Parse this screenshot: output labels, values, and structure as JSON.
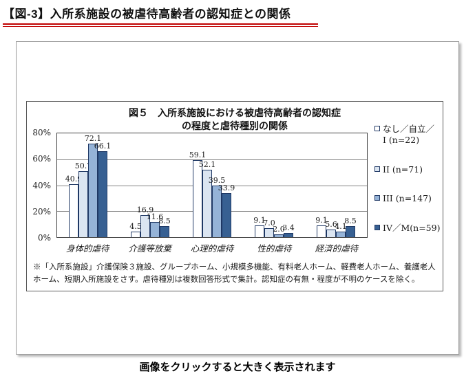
{
  "page": {
    "heading": "【図-3】入所系施設の被虐待高齢者の認知症との関係",
    "accent_underline_color": "#C00000",
    "caption": "画像をクリックすると大きく表示されます"
  },
  "chart_data": {
    "type": "bar",
    "title_line1": "図５　入所系施設における被虐待高齢者の認知症",
    "title_line2": "の程度と虐待種別の関係",
    "categories": [
      "身体的虐待",
      "介護等放棄",
      "心理的虐待",
      "性的虐待",
      "経済的虐待"
    ],
    "series": [
      {
        "name": "なし／自立／\nI (n=22)",
        "color": "#FFFFFF",
        "values": [
          40.9,
          4.5,
          59.1,
          9.1,
          9.1
        ]
      },
      {
        "name": "II (n=71)",
        "color": "#DBE5F1",
        "values": [
          50.7,
          16.9,
          52.1,
          7.0,
          5.6
        ]
      },
      {
        "name": "III (n=147)",
        "color": "#95B3D7",
        "values": [
          72.1,
          11.6,
          39.5,
          2.0,
          4.1
        ]
      },
      {
        "name": "IV／M(n=59)",
        "color": "#376092",
        "values": [
          66.1,
          8.5,
          33.9,
          3.4,
          8.5
        ]
      }
    ],
    "bar_border_color": "#1F3864",
    "gridline_color": "#808080",
    "y_ticks": [
      "80%",
      "60%",
      "40%",
      "20%",
      "0%"
    ],
    "ylim": [
      0,
      80
    ],
    "grid": true,
    "legend_position": "right",
    "footnote_line1": "※「入所系施設」介護保険３施設、グループホーム、小規模多機能、有料老人ホーム、軽費老人ホーム、養護老人",
    "footnote_line2": "ホーム、短期入所施設をさす。虐待種別は複数回答形式で集計。認知症の有無・程度が不明のケースを除く。"
  }
}
